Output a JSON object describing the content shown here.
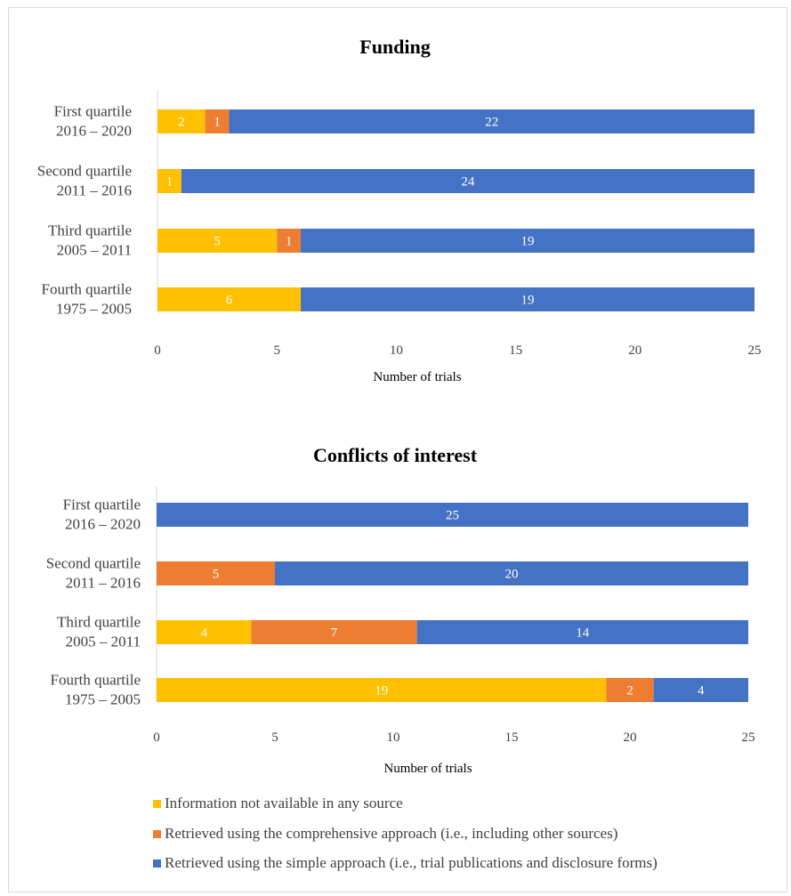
{
  "colors": {
    "not_available": "#FFC000",
    "comprehensive": "#ED7D31",
    "simple": "#4472C4",
    "axis": "#d9d9d9",
    "text": "#404040"
  },
  "legend": {
    "items": [
      {
        "label": "Information not available in any source",
        "color": "#FFC000"
      },
      {
        "label": "Retrieved using the comprehensive approach (i.e., including other sources)",
        "color": "#ED7D31"
      },
      {
        "label": "Retrieved using the simple approach (i.e., trial publications and disclosure forms)",
        "color": "#4472C4"
      }
    ],
    "placement": "bottom"
  },
  "chart_data": [
    {
      "type": "bar",
      "orientation": "horizontal",
      "stacked": true,
      "title": "Funding",
      "xlabel": "Number of trials",
      "xlim": [
        0,
        25
      ],
      "xticks": [
        "0",
        "5",
        "10",
        "15",
        "20",
        "25"
      ],
      "categories": [
        {
          "line1": "First quartile",
          "line2": "2016 – 2020"
        },
        {
          "line1": "Second quartile",
          "line2": "2011 – 2016"
        },
        {
          "line1": "Third quartile",
          "line2": "2005 – 2011"
        },
        {
          "line1": "Fourth quartile",
          "line2": "1975 – 2005"
        }
      ],
      "series": [
        {
          "name": "Information not available in any source",
          "values": [
            2,
            1,
            5,
            6
          ]
        },
        {
          "name": "Retrieved using the comprehensive approach (i.e., including other sources)",
          "values": [
            1,
            0,
            1,
            0
          ]
        },
        {
          "name": "Retrieved using the simple approach (i.e., trial publications and disclosure forms)",
          "values": [
            22,
            24,
            19,
            19
          ]
        }
      ],
      "grid": false
    },
    {
      "type": "bar",
      "orientation": "horizontal",
      "stacked": true,
      "title": "Conflicts of interest",
      "xlabel": "Number of trials",
      "xlim": [
        0,
        25
      ],
      "xticks": [
        "0",
        "5",
        "10",
        "15",
        "20",
        "25"
      ],
      "categories": [
        {
          "line1": "First quartile",
          "line2": "2016 – 2020"
        },
        {
          "line1": "Second quartile",
          "line2": "2011 – 2016"
        },
        {
          "line1": "Third quartile",
          "line2": "2005 – 2011"
        },
        {
          "line1": "Fourth quartile",
          "line2": "1975 – 2005"
        }
      ],
      "series": [
        {
          "name": "Information not available in any source",
          "values": [
            0,
            0,
            4,
            19
          ]
        },
        {
          "name": "Retrieved using the comprehensive approach (i.e., including other sources)",
          "values": [
            0,
            5,
            7,
            2
          ]
        },
        {
          "name": "Retrieved using the simple approach (i.e., trial publications and disclosure forms)",
          "values": [
            25,
            20,
            14,
            4
          ]
        }
      ],
      "grid": false
    }
  ]
}
